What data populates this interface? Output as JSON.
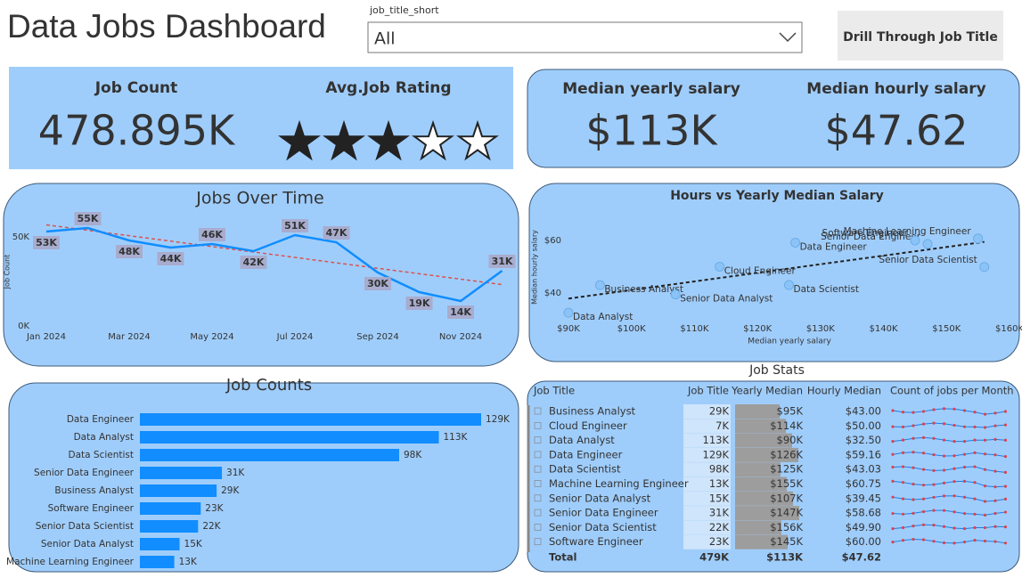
{
  "header": {
    "title": "Data Jobs Dashboard",
    "filter_label": "job_title_short",
    "filter_value": "All",
    "button": "Drill Through Job Title"
  },
  "kpis": [
    {
      "label": "Job Count",
      "value": "478.895K"
    },
    {
      "label": "Avg.Job Rating",
      "stars": 3,
      "star_count": 5
    },
    {
      "label": "Median yearly salary",
      "value": "$113K"
    },
    {
      "label": "Median hourly salary",
      "value": "$47.62"
    }
  ],
  "chart_data": [
    {
      "type": "line",
      "title": "Jobs Over Time",
      "y_label": "Job Count",
      "categories": [
        "Jan 2024",
        null,
        "Mar 2024",
        null,
        "May 2024",
        null,
        "Jul 2024",
        null,
        "Sep 2024",
        null,
        "Nov 2024",
        null
      ],
      "values": [
        53000,
        55000,
        48000,
        44000,
        46000,
        42000,
        51000,
        47000,
        30000,
        19000,
        14000,
        31000
      ],
      "value_labels": [
        "53K",
        "55K",
        "48K",
        "44K",
        "46K",
        "42K",
        "51K",
        "47K",
        "30K",
        "19K",
        "14K",
        "31K"
      ],
      "color": "#118DFF",
      "trendline": true,
      "trend_color": "#d9534f",
      "ylim": [
        0,
        60000
      ],
      "yticks": [
        {
          "value": 0,
          "label": "0K"
        },
        {
          "value": 50000,
          "label": "50K"
        }
      ]
    },
    {
      "type": "scatter",
      "title": "Hours vs Yearly Median Salary",
      "x_label": "Median yearly salary",
      "y_label": "Median hourly salary",
      "labels": [
        "Business Analyst",
        "Cloud Engineer",
        "Data Analyst",
        "Data Engineer",
        "Data Scientist",
        "Machine Learning Engineer",
        "Senior Data Analyst",
        "Senior Data Engineer",
        "Senior Data Scientist",
        "Software Engineer"
      ],
      "x": [
        95000,
        114000,
        90000,
        126000,
        125000,
        155000,
        107000,
        147000,
        156000,
        145000
      ],
      "values": [
        43.0,
        50.0,
        32.5,
        59.16,
        43.03,
        60.75,
        39.45,
        58.68,
        49.9,
        60.0
      ],
      "color": "#8cc3f7",
      "trendline": true,
      "trend_color": "#222222",
      "xlim": [
        90000,
        160000
      ],
      "xticks": [
        {
          "value": 90000,
          "label": "$90K"
        },
        {
          "value": 100000,
          "label": "$100K"
        },
        {
          "value": 110000,
          "label": "$110K"
        },
        {
          "value": 120000,
          "label": "$120K"
        },
        {
          "value": 130000,
          "label": "$130K"
        },
        {
          "value": 140000,
          "label": "$140K"
        },
        {
          "value": 150000,
          "label": "$150K"
        },
        {
          "value": 160000,
          "label": "$160K"
        }
      ],
      "ylim": [
        30,
        70
      ],
      "yticks": [
        {
          "value": 40,
          "label": "$40"
        },
        {
          "value": 60,
          "label": "$60"
        }
      ]
    },
    {
      "type": "bar",
      "orientation": "horizontal",
      "title": "Job Counts",
      "categories": [
        "Data Engineer",
        "Data Analyst",
        "Data Scientist",
        "Senior Data Engineer",
        "Business Analyst",
        "Software Engineer",
        "Senior Data Scientist",
        "Senior Data Analyst",
        "Machine Learning Engineer"
      ],
      "values": [
        129000,
        113000,
        98000,
        31000,
        29000,
        23000,
        22000,
        15000,
        13000
      ],
      "value_labels": [
        "129K",
        "113K",
        "98K",
        "31K",
        "29K",
        "23K",
        "22K",
        "15K",
        "13K"
      ],
      "color": "#118DFF"
    }
  ],
  "table": {
    "title": "Job Stats",
    "columns": [
      "Job Title",
      "Job Title",
      "Yearly Median",
      "Hourly Median",
      "Count of jobs per Month"
    ],
    "rows": [
      [
        "Business Analyst",
        "29K",
        "$95K",
        "$43.00"
      ],
      [
        "Cloud Engineer",
        "7K",
        "$114K",
        "$50.00"
      ],
      [
        "Data Analyst",
        "113K",
        "$90K",
        "$32.50"
      ],
      [
        "Data Engineer",
        "129K",
        "$126K",
        "$59.16"
      ],
      [
        "Data Scientist",
        "98K",
        "$125K",
        "$43.03"
      ],
      [
        "Machine Learning Engineer",
        "13K",
        "$155K",
        "$60.75"
      ],
      [
        "Senior Data Analyst",
        "15K",
        "$107K",
        "$39.45"
      ],
      [
        "Senior Data Engineer",
        "31K",
        "$147K",
        "$58.68"
      ],
      [
        "Senior Data Scientist",
        "22K",
        "$156K",
        "$49.90"
      ],
      [
        "Software Engineer",
        "23K",
        "$145K",
        "$60.00"
      ]
    ],
    "total": [
      "Total",
      "479K",
      "$113K",
      "$47.62"
    ]
  }
}
